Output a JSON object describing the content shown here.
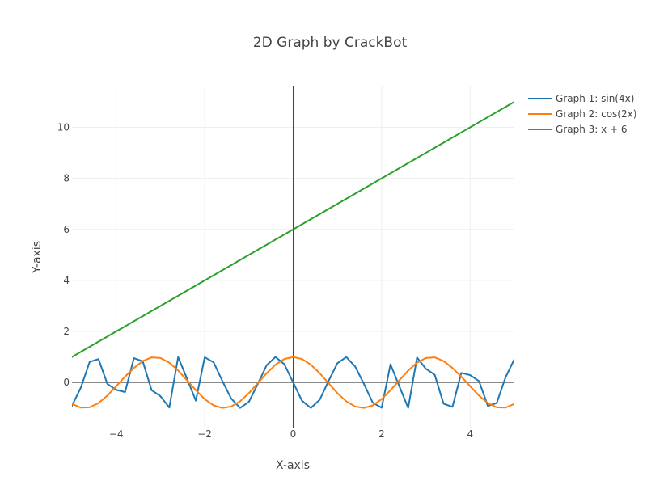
{
  "chart_data": {
    "type": "line",
    "title": "2D Graph by CrackBot",
    "xlabel": "X-axis",
    "ylabel": "Y-axis",
    "xlim": [
      -5,
      5
    ],
    "ylim": [
      -1.8,
      11.6
    ],
    "x_ticks": [
      -4,
      -2,
      0,
      2,
      4
    ],
    "x_tick_labels": [
      "−4",
      "−2",
      "0",
      "2",
      "4"
    ],
    "y_ticks": [
      0,
      2,
      4,
      6,
      8,
      10
    ],
    "y_tick_labels": [
      "0",
      "2",
      "4",
      "6",
      "8",
      "10"
    ],
    "grid": true,
    "zero_lines": true,
    "legend_position": "top-right, outside plot",
    "x": [
      -5.0,
      -4.8,
      -4.6,
      -4.4,
      -4.2,
      -4.0,
      -3.8,
      -3.6,
      -3.4,
      -3.2,
      -3.0,
      -2.8,
      -2.6,
      -2.4,
      -2.2,
      -2.0,
      -1.8,
      -1.6,
      -1.4,
      -1.2,
      -1.0,
      -0.8,
      -0.6,
      -0.4,
      -0.2,
      0.0,
      0.2,
      0.4,
      0.6,
      0.8,
      1.0,
      1.2,
      1.4,
      1.6,
      1.8,
      2.0,
      2.2,
      2.4,
      2.6,
      2.8,
      3.0,
      3.2,
      3.4,
      3.6,
      3.8,
      4.0,
      4.2,
      4.4,
      4.6,
      4.8,
      5.0
    ],
    "series": [
      {
        "name": "Graph 1: sin(4x)",
        "color": "#1f77b4",
        "values": [
          -0.913,
          -0.202,
          0.807,
          0.917,
          -0.056,
          -0.288,
          -0.375,
          0.955,
          0.832,
          -0.302,
          -0.537,
          -0.981,
          0.996,
          0.15,
          -0.712,
          0.989,
          0.794,
          0.057,
          -0.631,
          -0.997,
          -0.757,
          -0.058,
          0.675,
          1.0,
          0.717,
          0.0,
          -0.717,
          -1.0,
          -0.675,
          0.058,
          0.757,
          0.997,
          0.631,
          -0.057,
          -0.794,
          -0.989,
          0.712,
          -0.15,
          -0.996,
          0.981,
          0.537,
          0.302,
          -0.832,
          -0.955,
          0.375,
          0.288,
          0.056,
          -0.917,
          -0.807,
          0.202,
          0.913
        ]
      },
      {
        "name": "Graph 2: cos(2x)",
        "color": "#ff7f0e",
        "values": [
          -0.839,
          -0.984,
          -0.973,
          -0.808,
          -0.512,
          -0.146,
          0.232,
          0.57,
          0.84,
          0.985,
          0.96,
          0.776,
          0.468,
          0.087,
          -0.301,
          -0.654,
          -0.897,
          -0.998,
          -0.942,
          -0.737,
          -0.416,
          -0.029,
          0.362,
          0.697,
          0.921,
          1.0,
          0.921,
          0.697,
          0.362,
          -0.029,
          -0.416,
          -0.737,
          -0.942,
          -0.998,
          -0.897,
          -0.654,
          -0.301,
          0.087,
          0.468,
          0.776,
          0.96,
          0.985,
          0.84,
          0.57,
          0.232,
          -0.146,
          -0.512,
          -0.808,
          -0.973,
          -0.984,
          -0.839
        ]
      },
      {
        "name": "Graph 3: x + 6",
        "color": "#2ca02c",
        "values": [
          1.0,
          1.2,
          1.4,
          1.6,
          1.8,
          2.0,
          2.2,
          2.4,
          2.6,
          2.8,
          3.0,
          3.2,
          3.4,
          3.6,
          3.8,
          4.0,
          4.2,
          4.4,
          4.6,
          4.8,
          5.0,
          5.2,
          5.4,
          5.6,
          5.8,
          6.0,
          6.2,
          6.4,
          6.6,
          6.8,
          7.0,
          7.2,
          7.4,
          7.6,
          7.8,
          8.0,
          8.2,
          8.4,
          8.6,
          8.8,
          9.0,
          9.2,
          9.4,
          9.6,
          9.8,
          10.0,
          10.2,
          10.4,
          10.6,
          10.8,
          11.0
        ]
      }
    ]
  }
}
